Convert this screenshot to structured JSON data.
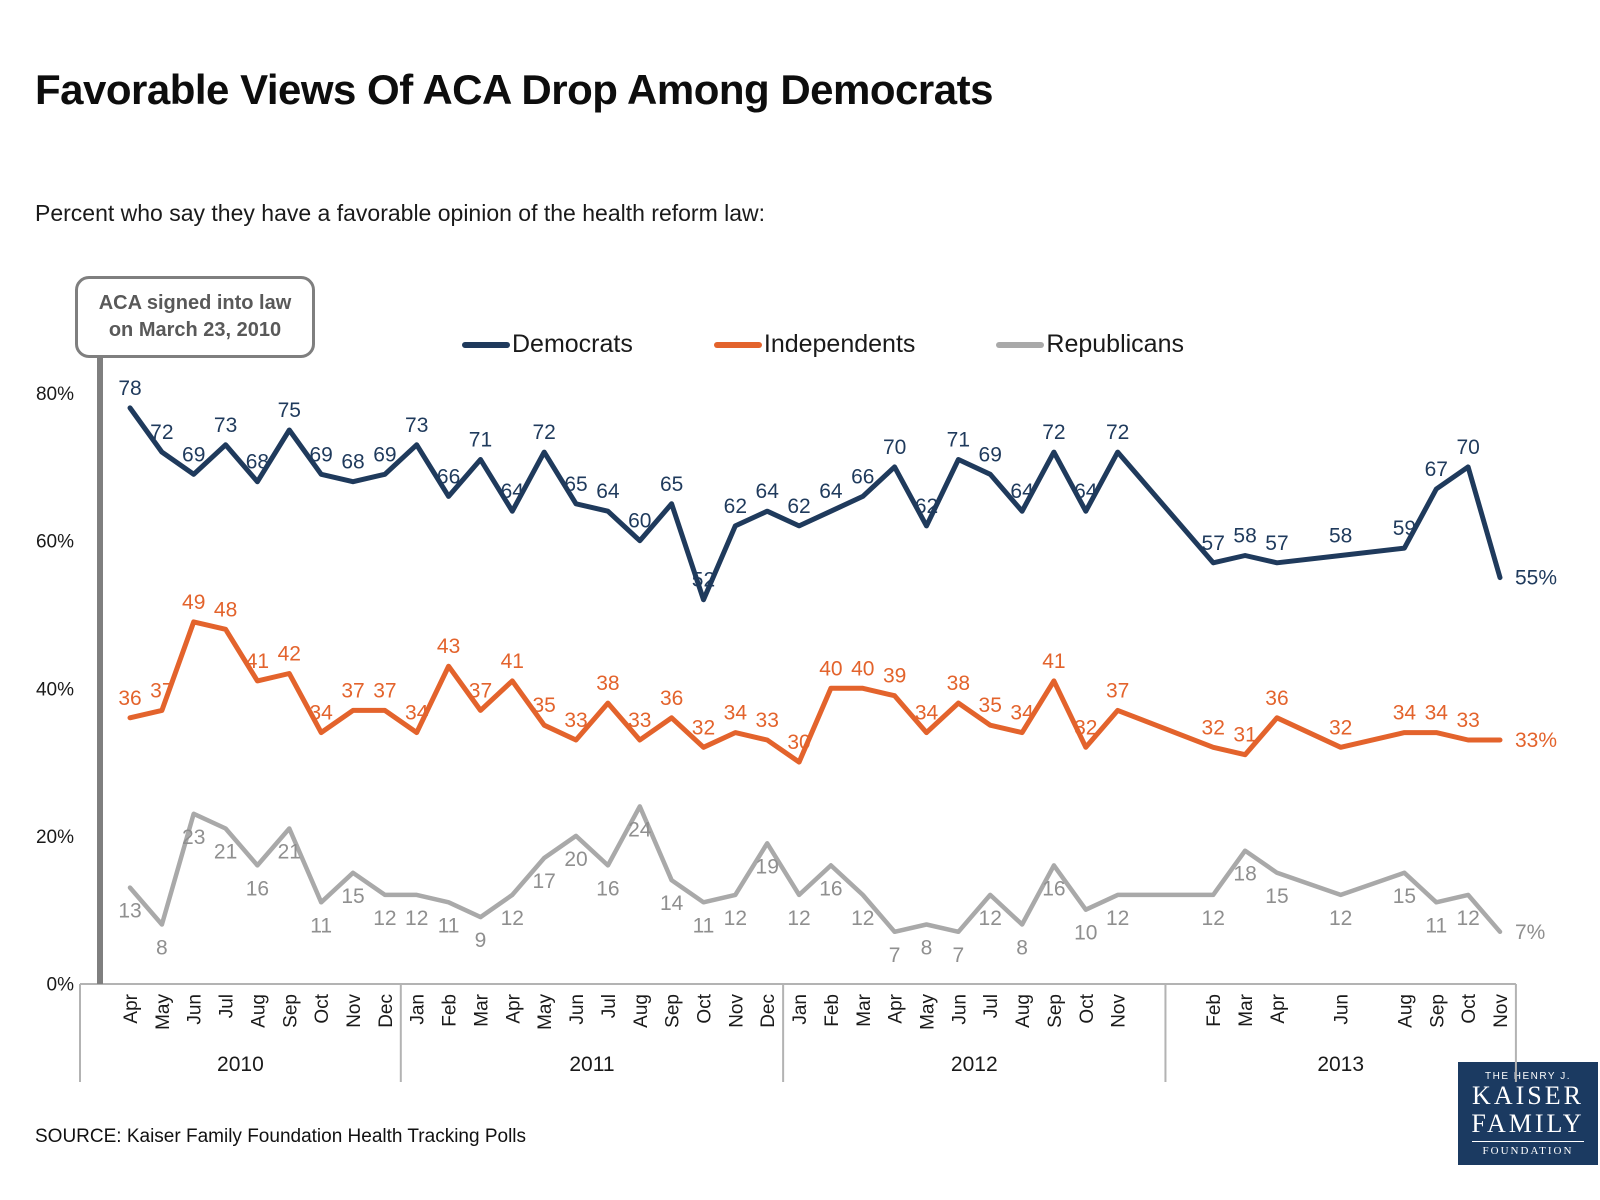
{
  "chart_data": {
    "type": "line",
    "title": "Favorable Views Of ACA Drop Among Democrats",
    "subtitle": "Percent who say they have a favorable opinion of the health reform law:",
    "annotation": {
      "line1": "ACA signed into law",
      "line2": "on March 23, 2010"
    },
    "grid": false,
    "legend_position": "top",
    "final_label_suffix": "%",
    "y_axis": {
      "range": [
        0,
        80
      ],
      "ticks": [
        {
          "label": "80%",
          "value": 80
        },
        {
          "label": "60%",
          "value": 60
        },
        {
          "label": "40%",
          "value": 40
        },
        {
          "label": "20%",
          "value": 20
        },
        {
          "label": "0%",
          "value": 0
        }
      ]
    },
    "x_axis": {
      "total_slots": 44,
      "years": [
        {
          "label": "2010",
          "start_slot": 0,
          "end_slot": 8
        },
        {
          "label": "2011",
          "start_slot": 9,
          "end_slot": 20
        },
        {
          "label": "2012",
          "start_slot": 21,
          "end_slot": 32
        },
        {
          "label": "2013",
          "start_slot": 33,
          "end_slot": 43
        }
      ],
      "month_slots": [
        {
          "slot": 0,
          "label": "Apr"
        },
        {
          "slot": 1,
          "label": "May"
        },
        {
          "slot": 2,
          "label": "Jun"
        },
        {
          "slot": 3,
          "label": "Jul"
        },
        {
          "slot": 4,
          "label": "Aug"
        },
        {
          "slot": 5,
          "label": "Sep"
        },
        {
          "slot": 6,
          "label": "Oct"
        },
        {
          "slot": 7,
          "label": "Nov"
        },
        {
          "slot": 8,
          "label": "Dec"
        },
        {
          "slot": 9,
          "label": "Jan"
        },
        {
          "slot": 10,
          "label": "Feb"
        },
        {
          "slot": 11,
          "label": "Mar"
        },
        {
          "slot": 12,
          "label": "Apr"
        },
        {
          "slot": 13,
          "label": "May"
        },
        {
          "slot": 14,
          "label": "Jun"
        },
        {
          "slot": 15,
          "label": "Jul"
        },
        {
          "slot": 16,
          "label": "Aug"
        },
        {
          "slot": 17,
          "label": "Sep"
        },
        {
          "slot": 18,
          "label": "Oct"
        },
        {
          "slot": 19,
          "label": "Nov"
        },
        {
          "slot": 20,
          "label": "Dec"
        },
        {
          "slot": 21,
          "label": "Jan"
        },
        {
          "slot": 22,
          "label": "Feb"
        },
        {
          "slot": 23,
          "label": "Mar"
        },
        {
          "slot": 24,
          "label": "Apr"
        },
        {
          "slot": 25,
          "label": "May"
        },
        {
          "slot": 26,
          "label": "Jun"
        },
        {
          "slot": 27,
          "label": "Jul"
        },
        {
          "slot": 28,
          "label": "Aug"
        },
        {
          "slot": 29,
          "label": "Sep"
        },
        {
          "slot": 30,
          "label": "Oct"
        },
        {
          "slot": 31,
          "label": "Nov"
        },
        {
          "slot": 34,
          "label": "Feb"
        },
        {
          "slot": 35,
          "label": "Mar"
        },
        {
          "slot": 36,
          "label": "Apr"
        },
        {
          "slot": 38,
          "label": "Jun"
        },
        {
          "slot": 40,
          "label": "Aug"
        },
        {
          "slot": 41,
          "label": "Sep"
        },
        {
          "slot": 42,
          "label": "Oct"
        },
        {
          "slot": 43,
          "label": "Nov"
        }
      ]
    },
    "series": [
      {
        "name": "Democrats",
        "color": "#1f3a5c",
        "label_color": "#1f3a5c",
        "label_position": "above",
        "values": [
          78,
          72,
          69,
          73,
          68,
          75,
          69,
          68,
          69,
          73,
          66,
          71,
          64,
          72,
          65,
          64,
          60,
          65,
          52,
          62,
          64,
          62,
          64,
          66,
          70,
          62,
          71,
          69,
          64,
          72,
          64,
          72,
          57,
          58,
          57,
          58,
          59,
          67,
          70,
          55
        ]
      },
      {
        "name": "Independents",
        "color": "#e3632c",
        "label_color": "#e3632c",
        "label_position": "above",
        "values": [
          36,
          37,
          49,
          48,
          41,
          42,
          34,
          37,
          37,
          34,
          43,
          37,
          41,
          35,
          33,
          38,
          33,
          36,
          32,
          34,
          33,
          30,
          40,
          40,
          39,
          34,
          38,
          35,
          34,
          41,
          32,
          37,
          32,
          31,
          36,
          32,
          34,
          34,
          33,
          33
        ]
      },
      {
        "name": "Republicans",
        "color": "#a9a9a9",
        "label_color": "#8f8f8f",
        "label_position": "below",
        "values": [
          13,
          8,
          23,
          21,
          16,
          21,
          11,
          15,
          12,
          12,
          11,
          9,
          12,
          17,
          20,
          16,
          24,
          14,
          11,
          12,
          19,
          12,
          16,
          12,
          7,
          8,
          7,
          12,
          8,
          16,
          10,
          12,
          12,
          18,
          15,
          12,
          15,
          11,
          12,
          7
        ]
      }
    ]
  },
  "footer": {
    "source": "SOURCE: Kaiser Family Foundation Health Tracking Polls"
  },
  "logo": {
    "line1": "THE HENRY J.",
    "line2": "KAISER",
    "line3": "FAMILY",
    "line4": "FOUNDATION"
  }
}
